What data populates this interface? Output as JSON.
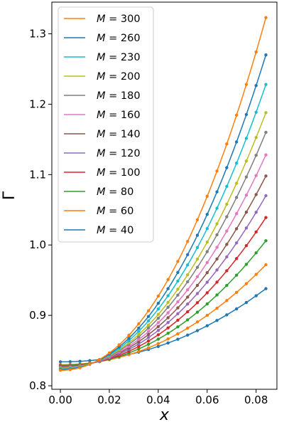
{
  "chart_data": {
    "type": "line",
    "xlabel": "x",
    "ylabel": "Γ",
    "xlim": [
      -0.0035,
      0.0885
    ],
    "ylim": [
      0.795,
      1.345
    ],
    "x_ticks": [
      0.0,
      0.02,
      0.04,
      0.06,
      0.08
    ],
    "x_tick_labels": [
      "0.00",
      "0.02",
      "0.04",
      "0.06",
      "0.08"
    ],
    "y_ticks": [
      0.8,
      0.9,
      1.0,
      1.1,
      1.2,
      1.3
    ],
    "y_tick_labels": [
      "0.8",
      "0.9",
      "1.0",
      "1.1",
      "1.2",
      "1.3"
    ],
    "grid": false,
    "legend_position": "top-left",
    "legend_label_prefix": "M = ",
    "curve_x_max": 0.084,
    "marker_spacing": 0.004,
    "series": [
      {
        "name": "300",
        "color": "#ff7f0e",
        "y0": 0.822,
        "y_end": 1.323
      },
      {
        "name": "260",
        "color": "#1f77b4",
        "y0": 0.823,
        "y_end": 1.27
      },
      {
        "name": "230",
        "color": "#17becf",
        "y0": 0.824,
        "y_end": 1.228
      },
      {
        "name": "200",
        "color": "#bcbd22",
        "y0": 0.825,
        "y_end": 1.188
      },
      {
        "name": "180",
        "color": "#7f7f7f",
        "y0": 0.8255,
        "y_end": 1.16
      },
      {
        "name": "160",
        "color": "#e377c2",
        "y0": 0.826,
        "y_end": 1.128
      },
      {
        "name": "140",
        "color": "#8c564b",
        "y0": 0.827,
        "y_end": 1.098
      },
      {
        "name": "120",
        "color": "#9467bd",
        "y0": 0.8275,
        "y_end": 1.07
      },
      {
        "name": "100",
        "color": "#d62728",
        "y0": 0.828,
        "y_end": 1.039
      },
      {
        "name": "80",
        "color": "#2ca02c",
        "y0": 0.829,
        "y_end": 1.006
      },
      {
        "name": "60",
        "color": "#ff7f0e",
        "y0": 0.83,
        "y_end": 0.972
      },
      {
        "name": "40",
        "color": "#1f77b4",
        "y0": 0.834,
        "y_end": 0.938
      }
    ]
  }
}
